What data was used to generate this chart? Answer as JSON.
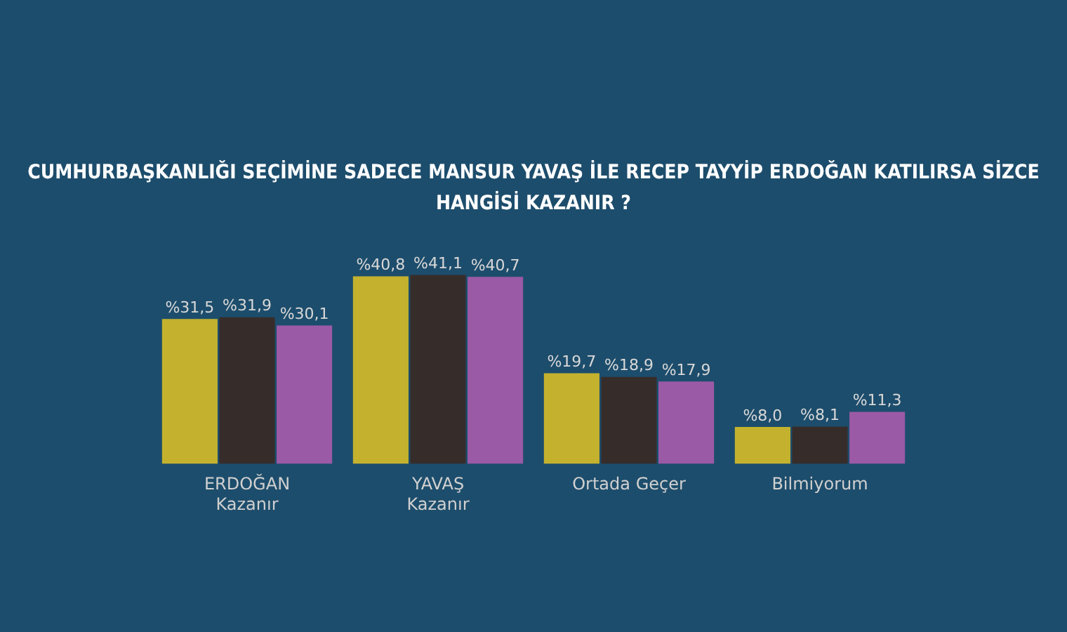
{
  "chart_data": {
    "type": "bar",
    "title": "CUMHURBAŞKANLIĞI SEÇİMİNE SADECE MANSUR YAVAŞ İLE RECEP TAYYİP ERDOĞAN KATILIRSA SİZCE HANGİSİ KAZANIR ?",
    "categories": [
      "ERDOĞAN\nKazanır",
      "YAVAŞ\nKazanır",
      "Ortada Geçer",
      "Bilmiyorum"
    ],
    "series": [
      {
        "color": "#c4b22e",
        "values": [
          31.5,
          40.8,
          19.7,
          8.0
        ],
        "value_labels": [
          "%31,5",
          "%40,8",
          "%19,7",
          "%8,0"
        ]
      },
      {
        "color": "#362d2b",
        "values": [
          31.9,
          41.1,
          18.9,
          8.1
        ],
        "value_labels": [
          "%31,9",
          "%41,1",
          "%18,9",
          "%8,1"
        ]
      },
      {
        "color": "#9a5aa6",
        "values": [
          30.1,
          40.7,
          17.9,
          11.3
        ],
        "value_labels": [
          "%30,1",
          "%40,7",
          "%17,9",
          "%11,3"
        ]
      }
    ],
    "grid": false,
    "legend": false
  }
}
